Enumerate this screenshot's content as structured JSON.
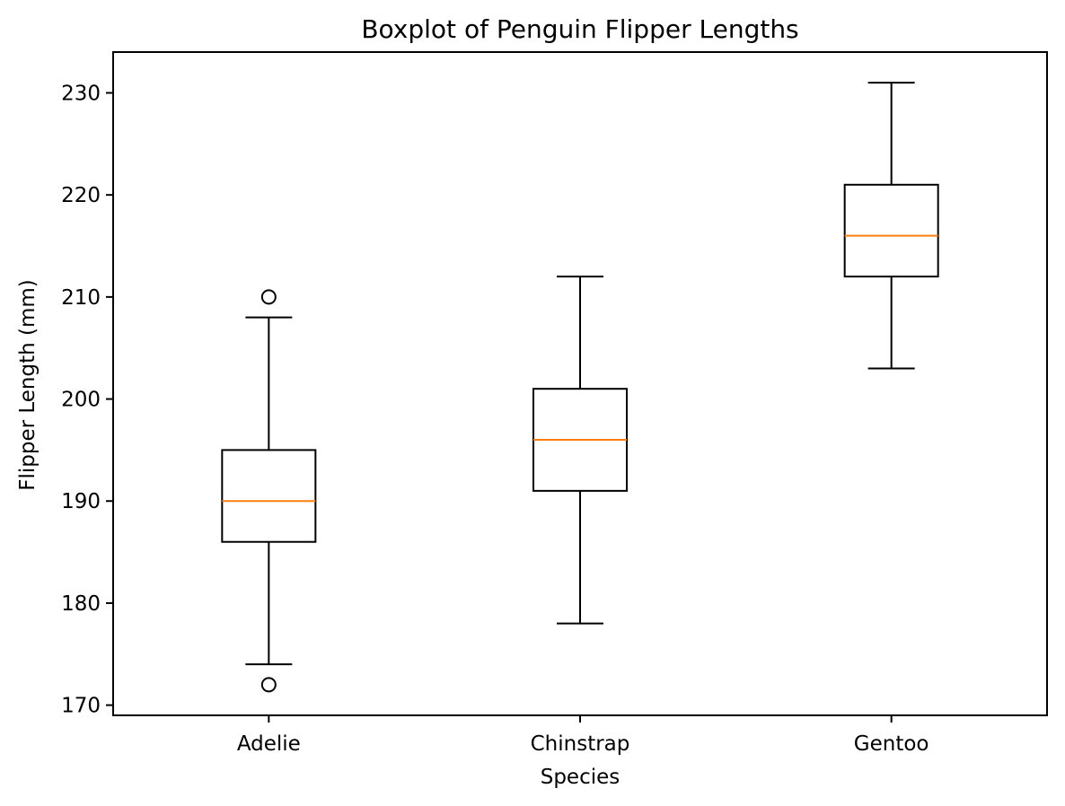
{
  "chart_data": {
    "type": "boxplot",
    "title": "Boxplot of Penguin Flipper Lengths",
    "xlabel": "Species",
    "ylabel": "Flipper Length (mm)",
    "ylim": [
      169,
      234
    ],
    "yticks": [
      170,
      180,
      190,
      200,
      210,
      220,
      230
    ],
    "grid": false,
    "categories": [
      "Adelie",
      "Chinstrap",
      "Gentoo"
    ],
    "boxes": [
      {
        "category": "Adelie",
        "whisker_low": 174,
        "q1": 186,
        "median": 190,
        "q3": 195,
        "whisker_high": 208,
        "outliers": [
          172,
          210
        ]
      },
      {
        "category": "Chinstrap",
        "whisker_low": 178,
        "q1": 191,
        "median": 196,
        "q3": 201,
        "whisker_high": 212,
        "outliers": []
      },
      {
        "category": "Gentoo",
        "whisker_low": 203,
        "q1": 212,
        "median": 216,
        "q3": 221,
        "whisker_high": 231,
        "outliers": []
      }
    ],
    "colors": {
      "box": "#000000",
      "median": "#ff7f0e",
      "axes": "#000000"
    }
  }
}
